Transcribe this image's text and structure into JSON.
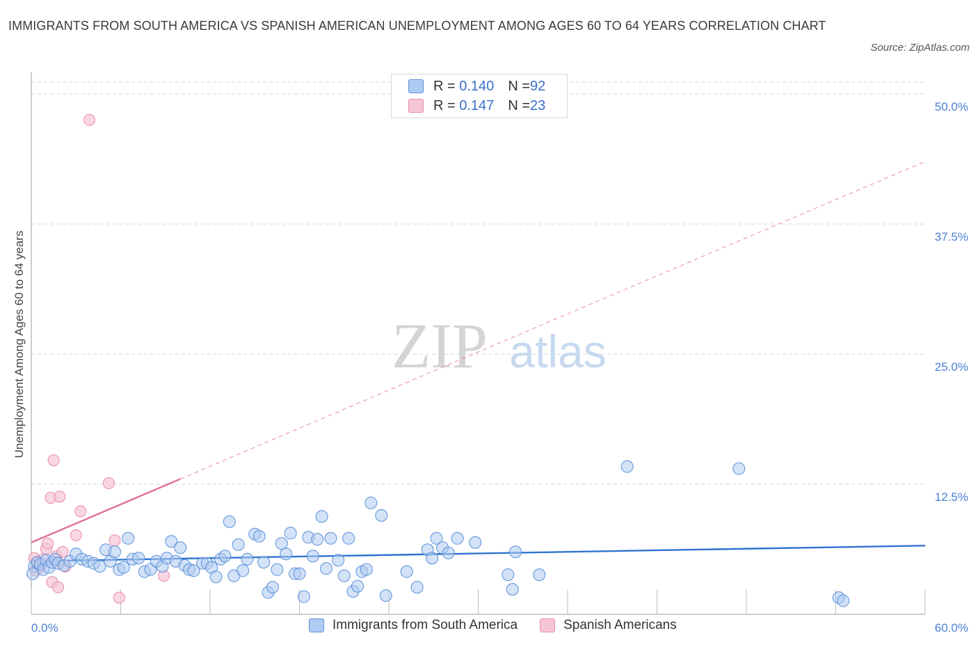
{
  "header": {
    "title": "IMMIGRANTS FROM SOUTH AMERICA VS SPANISH AMERICAN UNEMPLOYMENT AMONG AGES 60 TO 64 YEARS CORRELATION CHART",
    "source": "Source: ZipAtlas.com"
  },
  "watermark": {
    "zip": "ZIP",
    "atlas": "atlas"
  },
  "legend": {
    "series1": {
      "r_label": "R = ",
      "r_value": "0.140",
      "n_label": "N = ",
      "n_value": "92"
    },
    "series2": {
      "r_label": "R = ",
      "r_value": "0.147",
      "n_label": "N = ",
      "n_value": "23"
    }
  },
  "colors": {
    "blue_fill": "#aecbf1",
    "blue_stroke": "#5a8fd8",
    "blue_line": "#2f74cf",
    "pink_fill": "#f7c6d6",
    "pink_stroke": "#e88aa8",
    "pink_line": "#e0709a",
    "grid": "#d5d5d5",
    "axis_label": "#4a7fd4"
  },
  "chart_data": {
    "type": "scatter",
    "title": "IMMIGRANTS FROM SOUTH AMERICA VS SPANISH AMERICAN UNEMPLOYMENT AMONG AGES 60 TO 64 YEARS CORRELATION CHART",
    "xlabel": "",
    "ylabel": "Unemployment Among Ages 60 to 64 years",
    "xlim": [
      0,
      60
    ],
    "ylim": [
      0,
      50
    ],
    "x_tick_labels": [
      "0.0%",
      "60.0%"
    ],
    "y_ticks": [
      12.5,
      25.0,
      37.5,
      50.0
    ],
    "y_tick_labels": [
      "12.5%",
      "25.0%",
      "37.5%",
      "50.0%"
    ],
    "grid": true,
    "legend_position": "top-center",
    "series": [
      {
        "name": "Immigrants from South America",
        "r": 0.14,
        "n": 92,
        "trend": {
          "x": [
            0,
            60
          ],
          "y": [
            5.1,
            6.6
          ],
          "style": "solid"
        },
        "points": [
          [
            0.2,
            4.6
          ],
          [
            0.4,
            5.0
          ],
          [
            0.6,
            4.8
          ],
          [
            0.8,
            4.3
          ],
          [
            1.0,
            5.2
          ],
          [
            1.2,
            4.5
          ],
          [
            1.4,
            5.0
          ],
          [
            1.6,
            5.3
          ],
          [
            1.8,
            4.9
          ],
          [
            2.2,
            4.7
          ],
          [
            2.6,
            5.1
          ],
          [
            3.0,
            5.8
          ],
          [
            3.4,
            5.3
          ],
          [
            3.8,
            5.1
          ],
          [
            4.2,
            4.9
          ],
          [
            4.6,
            4.6
          ],
          [
            5.0,
            6.2
          ],
          [
            5.3,
            5.1
          ],
          [
            5.6,
            6.0
          ],
          [
            5.9,
            4.3
          ],
          [
            6.2,
            4.5
          ],
          [
            6.5,
            7.3
          ],
          [
            6.8,
            5.3
          ],
          [
            7.2,
            5.4
          ],
          [
            7.6,
            4.1
          ],
          [
            8.0,
            4.3
          ],
          [
            8.4,
            5.1
          ],
          [
            8.8,
            4.6
          ],
          [
            9.1,
            5.4
          ],
          [
            9.4,
            7.0
          ],
          [
            9.7,
            5.1
          ],
          [
            10.0,
            6.4
          ],
          [
            10.3,
            4.7
          ],
          [
            10.6,
            4.3
          ],
          [
            10.9,
            4.2
          ],
          [
            11.5,
            4.9
          ],
          [
            11.8,
            4.9
          ],
          [
            12.1,
            4.5
          ],
          [
            12.4,
            3.6
          ],
          [
            12.7,
            5.3
          ],
          [
            13.0,
            5.6
          ],
          [
            13.3,
            8.9
          ],
          [
            13.6,
            3.7
          ],
          [
            13.9,
            6.7
          ],
          [
            14.2,
            4.2
          ],
          [
            14.5,
            5.3
          ],
          [
            15.0,
            7.7
          ],
          [
            15.3,
            7.5
          ],
          [
            15.6,
            5.0
          ],
          [
            15.9,
            2.1
          ],
          [
            16.2,
            2.6
          ],
          [
            16.5,
            4.3
          ],
          [
            16.8,
            6.8
          ],
          [
            17.1,
            5.8
          ],
          [
            17.4,
            7.8
          ],
          [
            17.7,
            3.9
          ],
          [
            18.0,
            3.9
          ],
          [
            18.3,
            1.7
          ],
          [
            18.6,
            7.4
          ],
          [
            18.9,
            5.6
          ],
          [
            19.2,
            7.2
          ],
          [
            19.5,
            9.4
          ],
          [
            19.8,
            4.4
          ],
          [
            20.1,
            7.3
          ],
          [
            20.6,
            5.2
          ],
          [
            21.0,
            3.7
          ],
          [
            21.3,
            7.3
          ],
          [
            21.6,
            2.2
          ],
          [
            21.9,
            2.7
          ],
          [
            22.2,
            4.1
          ],
          [
            22.5,
            4.3
          ],
          [
            22.8,
            10.7
          ],
          [
            23.5,
            9.5
          ],
          [
            23.8,
            1.8
          ],
          [
            25.2,
            4.1
          ],
          [
            25.9,
            2.6
          ],
          [
            26.6,
            6.2
          ],
          [
            26.9,
            5.4
          ],
          [
            27.2,
            7.3
          ],
          [
            27.6,
            6.4
          ],
          [
            28.0,
            5.9
          ],
          [
            28.6,
            7.3
          ],
          [
            29.8,
            6.9
          ],
          [
            32.0,
            3.8
          ],
          [
            32.3,
            2.4
          ],
          [
            32.5,
            6.0
          ],
          [
            34.1,
            3.8
          ],
          [
            40.0,
            14.2
          ],
          [
            47.5,
            14.0
          ],
          [
            54.2,
            1.6
          ],
          [
            54.5,
            1.3
          ],
          [
            0.1,
            3.9
          ]
        ]
      },
      {
        "name": "Spanish Americans",
        "r": 0.147,
        "n": 23,
        "trend": {
          "x": [
            0,
            60
          ],
          "y": [
            6.9,
            43.5
          ],
          "style": "solid to x=10, dashed beyond"
        },
        "points": [
          [
            0.2,
            5.4
          ],
          [
            0.4,
            5.0
          ],
          [
            0.6,
            4.6
          ],
          [
            0.8,
            5.3
          ],
          [
            1.0,
            6.3
          ],
          [
            1.1,
            6.8
          ],
          [
            1.3,
            11.2
          ],
          [
            1.4,
            3.1
          ],
          [
            1.5,
            14.8
          ],
          [
            1.6,
            5.1
          ],
          [
            1.7,
            5.6
          ],
          [
            1.8,
            2.6
          ],
          [
            1.9,
            11.3
          ],
          [
            2.1,
            6.0
          ],
          [
            2.3,
            4.6
          ],
          [
            3.0,
            7.6
          ],
          [
            3.3,
            9.9
          ],
          [
            3.9,
            47.5
          ],
          [
            5.2,
            12.6
          ],
          [
            5.6,
            7.1
          ],
          [
            5.9,
            1.6
          ],
          [
            8.9,
            3.7
          ],
          [
            0.3,
            4.2
          ]
        ]
      }
    ]
  },
  "bottom_legend": {
    "series1_label": "Immigrants from South America",
    "series2_label": "Spanish Americans"
  }
}
